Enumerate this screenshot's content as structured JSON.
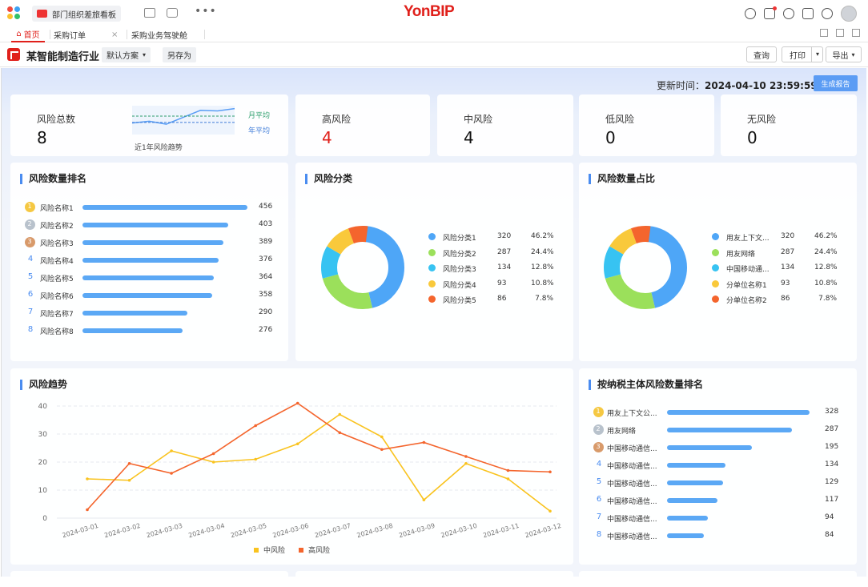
{
  "topbar": {
    "app_tab_label": "部门组织差旅看板",
    "brand": "YonBIP"
  },
  "tabs": [
    {
      "label": "首页",
      "active": true
    },
    {
      "label": "采购订单"
    },
    {
      "label": "采购业务驾驶舱"
    }
  ],
  "tab_close_glyph": "×",
  "toolbar": {
    "title": "某智能制造行业",
    "plan_label": "默认方案",
    "save_as_label": "另存为",
    "query_label": "查询",
    "print_label": "打印",
    "export_label": "导出"
  },
  "update": {
    "label": "更新时间：",
    "time": "2024-04-10 23:59:59",
    "generate_label": "生成报告"
  },
  "kpis": {
    "total": {
      "label": "风险总数",
      "value": "8"
    },
    "high": {
      "label": "高风险",
      "value": "4"
    },
    "medium": {
      "label": "中风险",
      "value": "4"
    },
    "low": {
      "label": "低风险",
      "value": "0"
    },
    "none": {
      "label": "无风险",
      "value": "0"
    }
  },
  "sparkline": {
    "caption": "近1年风险趋势",
    "month_avg_label": "月平均",
    "year_avg_label": "年平均",
    "values": [
      2,
      2.3,
      1.8,
      3,
      4.2,
      4.1,
      4.5
    ],
    "month_avg": 3.2,
    "year_avg": 2.1
  },
  "risk_rank": {
    "title": "风险数量排名",
    "items": [
      {
        "rank": "1",
        "name": "风险名称1",
        "value": 456
      },
      {
        "rank": "2",
        "name": "风险名称2",
        "value": 403
      },
      {
        "rank": "3",
        "name": "风险名称3",
        "value": 389
      },
      {
        "rank": "4",
        "name": "风险名称4",
        "value": 376
      },
      {
        "rank": "5",
        "name": "风险名称5",
        "value": 364
      },
      {
        "rank": "6",
        "name": "风险名称6",
        "value": 358
      },
      {
        "rank": "7",
        "name": "风险名称7",
        "value": 290
      },
      {
        "rank": "8",
        "name": "风险名称8",
        "value": 276
      }
    ]
  },
  "risk_category": {
    "title": "风险分类",
    "items": [
      {
        "name": "风险分类1",
        "value": "320",
        "pct": "46.2%"
      },
      {
        "name": "风险分类2",
        "value": "287",
        "pct": "24.4%"
      },
      {
        "name": "风险分类3",
        "value": "134",
        "pct": "12.8%"
      },
      {
        "name": "风险分类4",
        "value": "93",
        "pct": "10.8%"
      },
      {
        "name": "风险分类5",
        "value": "86",
        "pct": "7.8%"
      }
    ]
  },
  "risk_share": {
    "title": "风险数量占比",
    "items": [
      {
        "name": "用友上下文...",
        "value": "320",
        "pct": "46.2%"
      },
      {
        "name": "用友网络",
        "value": "287",
        "pct": "24.4%"
      },
      {
        "name": "中国移动通...",
        "value": "134",
        "pct": "12.8%"
      },
      {
        "name": "分单位名称1",
        "value": "93",
        "pct": "10.8%"
      },
      {
        "name": "分单位名称2",
        "value": "86",
        "pct": "7.8%"
      }
    ]
  },
  "donut_colors": [
    "#4ea6f7",
    "#9be05b",
    "#37c3f2",
    "#f9c93b",
    "#f4652d"
  ],
  "donut_fractions": [
    0.462,
    0.244,
    0.128,
    0.108,
    0.078
  ],
  "trend": {
    "title": "风险趋势"
  },
  "taxpayer_rank": {
    "title": "按纳税主体风险数量排名",
    "items": [
      {
        "rank": "1",
        "name": "用友上下文公...",
        "value": 328
      },
      {
        "rank": "2",
        "name": "用友网络",
        "value": 287
      },
      {
        "rank": "3",
        "name": "中国移动通信...",
        "value": 195
      },
      {
        "rank": "4",
        "name": "中国移动通信...",
        "value": 134
      },
      {
        "rank": "5",
        "name": "中国移动通信...",
        "value": 129
      },
      {
        "rank": "6",
        "name": "中国移动通信...",
        "value": 117
      },
      {
        "rank": "7",
        "name": "中国移动通信...",
        "value": 94
      },
      {
        "rank": "8",
        "name": "中国移动通信...",
        "value": 84
      }
    ]
  },
  "bar_color": "#5ba8f5",
  "accent_color": "#e0201b",
  "chart_data": {
    "type": "line",
    "x": [
      "2024-03-01",
      "2024-03-02",
      "2024-03-03",
      "2024-03-04",
      "2024-03-05",
      "2024-03-06",
      "2024-03-07",
      "2024-03-08",
      "2024-03-09",
      "2024-03-10",
      "2024-03-11",
      "2024-03-12"
    ],
    "series": [
      {
        "name": "中风险",
        "color": "#f9c31f",
        "values": [
          14,
          13.5,
          24,
          20,
          21,
          26.5,
          37,
          29,
          6.5,
          19.5,
          14,
          2.5
        ]
      },
      {
        "name": "高风险",
        "color": "#f4652d",
        "values": [
          3,
          19.5,
          16,
          23,
          33,
          41,
          30.5,
          24.5,
          27,
          22,
          17,
          16.5
        ]
      }
    ],
    "yticks": [
      0,
      10,
      20,
      30,
      40
    ],
    "ylim": [
      0,
      40
    ],
    "grid": true,
    "legend": "bottom"
  }
}
